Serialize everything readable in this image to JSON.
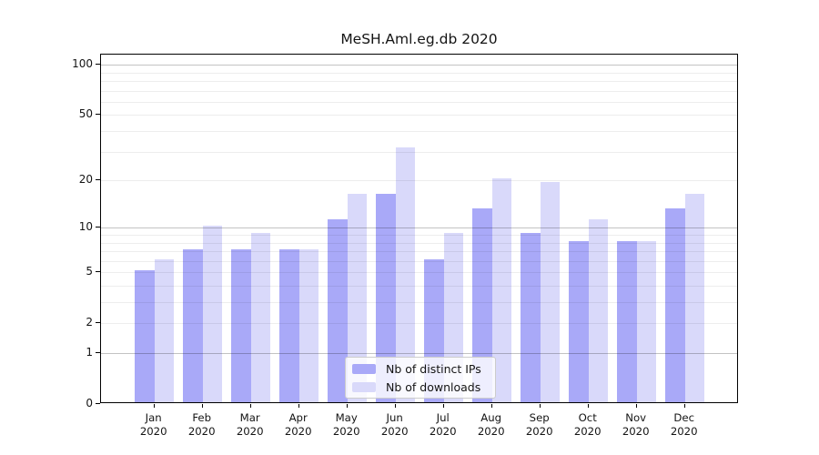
{
  "title": "MeSH.Aml.eg.db 2020",
  "chart_data": {
    "type": "bar",
    "title": "MeSH.Aml.eg.db 2020",
    "categories": [
      "Jan 2020",
      "Feb 2020",
      "Mar 2020",
      "Apr 2020",
      "May 2020",
      "Jun 2020",
      "Jul 2020",
      "Aug 2020",
      "Sep 2020",
      "Oct 2020",
      "Nov 2020",
      "Dec 2020"
    ],
    "series": [
      {
        "name": "Nb of distinct IPs",
        "color": "#a9a9f8",
        "values": [
          5,
          7,
          7,
          7,
          11,
          16,
          6,
          13,
          9,
          8,
          8,
          13
        ]
      },
      {
        "name": "Nb of downloads",
        "color": "#d9d9fa",
        "values": [
          6,
          10,
          9,
          7,
          16,
          31,
          9,
          20,
          19,
          11,
          8,
          16
        ]
      }
    ],
    "xlabel": "",
    "ylabel": "",
    "yscale": "log1p",
    "ylim": [
      0,
      115
    ],
    "yticks": [
      0,
      1,
      2,
      5,
      10,
      20,
      50,
      100
    ],
    "ytick_labels": [
      "0",
      "1",
      "2",
      "5",
      "10",
      "20",
      "50",
      "100"
    ],
    "major_gridlines": [
      1,
      10,
      100
    ],
    "minor_gridlines": [
      2,
      3,
      4,
      5,
      6,
      7,
      8,
      9,
      20,
      30,
      40,
      50,
      60,
      70,
      80,
      90
    ],
    "grid": true,
    "legend_position": "lower center",
    "colors": {
      "major_grid": "#c4c4c4",
      "minor_grid": "#ececec",
      "axis": "#000000",
      "background": "#ffffff"
    }
  }
}
